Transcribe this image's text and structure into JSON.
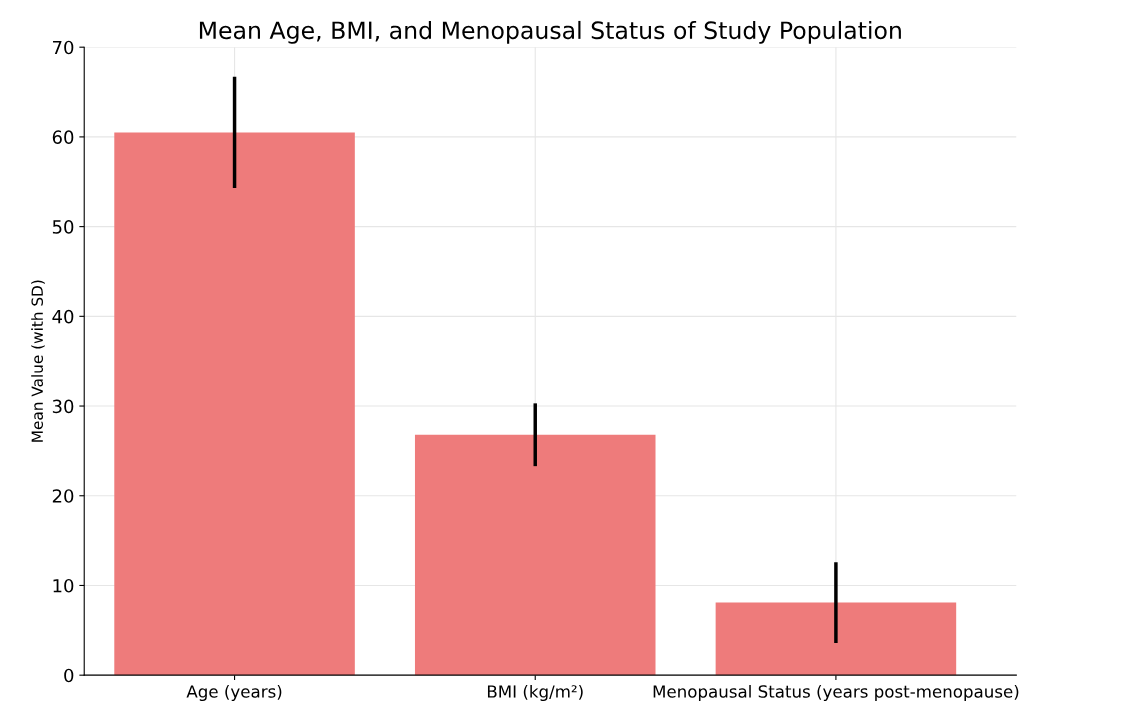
{
  "chart_data": {
    "type": "bar",
    "title": "Mean Age, BMI, and Menopausal Status of Study Population",
    "ylabel": "Mean Value (with SD)",
    "categories": [
      "Age (years)",
      "BMI (kg/m²)",
      "Menopausal Status (years post-menopause)"
    ],
    "values": [
      60.5,
      26.8,
      8.1
    ],
    "errors": [
      6.2,
      3.5,
      4.5
    ],
    "color": "#ee7b7b",
    "ylim": [
      0,
      70
    ],
    "yticks": [
      0,
      10,
      20,
      30,
      40,
      50,
      60,
      70
    ],
    "grid": true
  }
}
